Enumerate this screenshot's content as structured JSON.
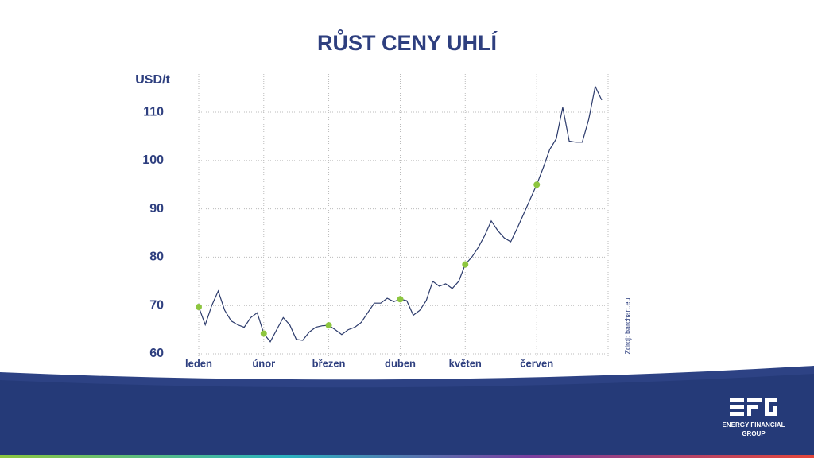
{
  "chart_data": {
    "type": "line",
    "title": "RŮST CENY UHLÍ",
    "y_label": "USD/t",
    "source": "Zdroj: barchart.eu",
    "categories": [
      "leden",
      null,
      null,
      null,
      null,
      null,
      null,
      null,
      null,
      null,
      "únor",
      null,
      null,
      null,
      null,
      null,
      null,
      null,
      null,
      null,
      "březen",
      null,
      null,
      null,
      null,
      null,
      null,
      null,
      null,
      null,
      null,
      "duben",
      null,
      null,
      null,
      null,
      null,
      null,
      null,
      null,
      null,
      "květen",
      null,
      null,
      null,
      null,
      null,
      null,
      null,
      null,
      null,
      null,
      "červen",
      null,
      null,
      null,
      null,
      null,
      null,
      null,
      null,
      null,
      null
    ],
    "series": [
      {
        "color": "#2b3a6b",
        "values": [
          69.7,
          66,
          70,
          73,
          69,
          66.8,
          66,
          65.5,
          67.5,
          68.5,
          64.2,
          62.5,
          65,
          67.5,
          66,
          63,
          62.8,
          64.5,
          65.5,
          65.8,
          65.9,
          65,
          64,
          65,
          65.5,
          66.5,
          68.5,
          70.5,
          70.5,
          71.5,
          70.8,
          71.3,
          71,
          68,
          69,
          71,
          75,
          74,
          74.5,
          73.5,
          75,
          78.5,
          80,
          82,
          84.5,
          87.5,
          85.5,
          84,
          83.2,
          86,
          89,
          92,
          95,
          98.5,
          102.3,
          104.5,
          111,
          104,
          103.8,
          103.8,
          108.5,
          115.3,
          112.5
        ]
      },
      {
        "type": "scatter",
        "color": "#8dc63f",
        "values": [
          69.7,
          null,
          null,
          null,
          null,
          null,
          null,
          null,
          null,
          null,
          64.2,
          null,
          null,
          null,
          null,
          null,
          null,
          null,
          null,
          null,
          65.9,
          null,
          null,
          null,
          null,
          null,
          null,
          null,
          null,
          null,
          null,
          71.3,
          null,
          null,
          null,
          null,
          null,
          null,
          null,
          null,
          null,
          78.5,
          null,
          null,
          null,
          null,
          null,
          null,
          null,
          null,
          null,
          null,
          95,
          null,
          null,
          null,
          null,
          null,
          null,
          null,
          null,
          null,
          null
        ]
      }
    ],
    "ylim": [
      60,
      118.4
    ],
    "yticks": [
      60,
      70,
      80,
      90,
      100,
      110
    ],
    "grid": true
  },
  "logo": {
    "line1": "ENERGY FINANCIAL",
    "line2": "GROUP"
  }
}
